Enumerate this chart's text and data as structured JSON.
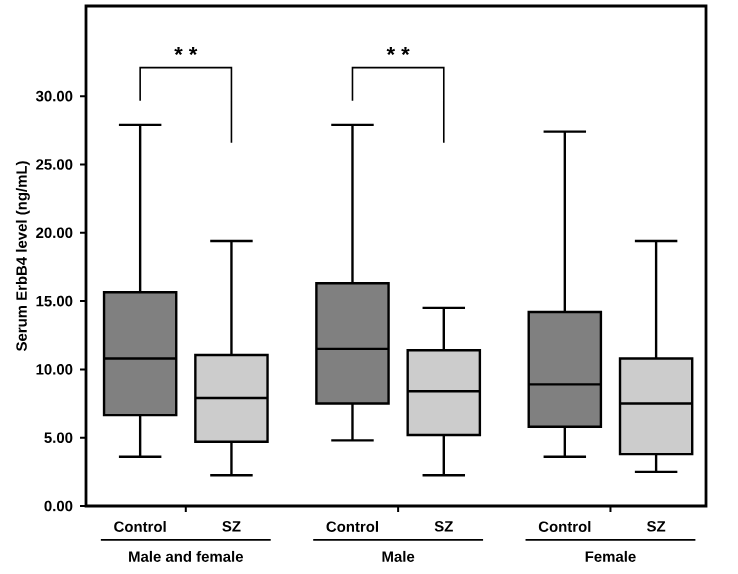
{
  "chart_data": {
    "type": "box",
    "ylabel": "Serum ErbB4 level (ng/mL)",
    "categories": [
      "Control",
      "SZ",
      "Control",
      "SZ",
      "Control",
      "SZ"
    ],
    "colors": [
      "#808080",
      "#cccccc",
      "#808080",
      "#cccccc",
      "#808080",
      "#cccccc"
    ],
    "boxes": [
      {
        "low": 3.6,
        "q1": 6.65,
        "median": 10.8,
        "q3": 15.65,
        "high": 27.9
      },
      {
        "low": 2.25,
        "q1": 4.7,
        "median": 7.9,
        "q3": 11.05,
        "high": 19.4
      },
      {
        "low": 4.8,
        "q1": 7.5,
        "median": 11.5,
        "q3": 16.3,
        "high": 27.9
      },
      {
        "low": 2.25,
        "q1": 5.2,
        "median": 8.4,
        "q3": 11.4,
        "high": 14.5
      },
      {
        "low": 3.6,
        "q1": 5.8,
        "median": 8.9,
        "q3": 14.2,
        "high": 27.4
      },
      {
        "low": 2.5,
        "q1": 3.8,
        "median": 7.5,
        "q3": 10.8,
        "high": 19.4
      }
    ],
    "ylim": [
      0,
      36.6
    ],
    "yticks": [
      {
        "value": 0,
        "label": "0.00"
      },
      {
        "value": 5,
        "label": "5.00"
      },
      {
        "value": 10,
        "label": "10.00"
      },
      {
        "value": 15,
        "label": "15.00"
      },
      {
        "value": 20,
        "label": "20.00"
      },
      {
        "value": 25,
        "label": "25.00"
      },
      {
        "value": 30,
        "label": "30.00"
      }
    ],
    "annotations": [
      "* *",
      "* *",
      "Male and female",
      "Male",
      "Female"
    ]
  }
}
